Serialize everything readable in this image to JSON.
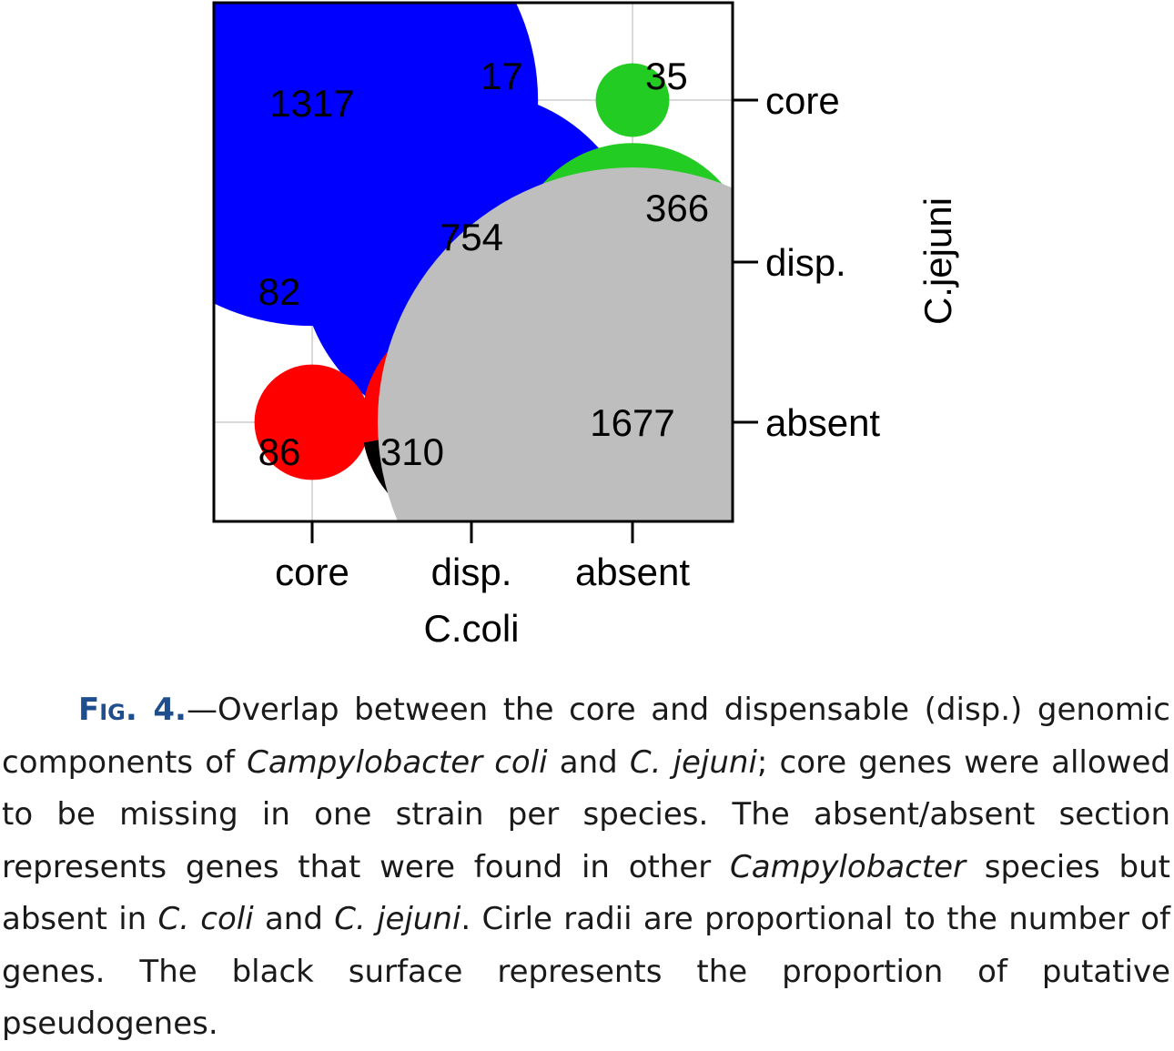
{
  "chart_data": {
    "type": "bubble-pie-matrix",
    "title": "",
    "xlabel": "C.coli",
    "ylabel": "C.jejuni",
    "x_categories": [
      "core",
      "disp.",
      "absent"
    ],
    "y_categories": [
      "core",
      "disp.",
      "absent"
    ],
    "grid": true,
    "max_value": 1677,
    "points": [
      {
        "x": "core",
        "y": "core",
        "value": 1317,
        "label": "1317",
        "color": "#0000ff",
        "pseudo_fraction": 0
      },
      {
        "x": "disp.",
        "y": "core",
        "value": 17,
        "label": "17",
        "color": "#0000ff",
        "pseudo_fraction": 0
      },
      {
        "x": "absent",
        "y": "core",
        "value": 35,
        "label": "35",
        "color": "#22cc22",
        "pseudo_fraction": 0
      },
      {
        "x": "core",
        "y": "disp.",
        "value": 82,
        "label": "82",
        "color": "#0000ff",
        "pseudo_fraction": 0
      },
      {
        "x": "disp.",
        "y": "disp.",
        "value": 754,
        "label": "754",
        "color": "#0000ff",
        "pseudo_fraction": 0.14
      },
      {
        "x": "absent",
        "y": "disp.",
        "value": 366,
        "label": "366",
        "color": "#22cc22",
        "pseudo_fraction": 0.5
      },
      {
        "x": "core",
        "y": "absent",
        "value": 86,
        "label": "86",
        "color": "#ff0000",
        "pseudo_fraction": 0
      },
      {
        "x": "disp.",
        "y": "absent",
        "value": 310,
        "label": "310",
        "color": "#ff0000",
        "pseudo_fraction": 0.47
      },
      {
        "x": "absent",
        "y": "absent",
        "value": 1677,
        "label": "1677",
        "color": "#bebebe",
        "pseudo_fraction": 0
      }
    ],
    "pseudo_color": "#000000"
  },
  "caption": {
    "fig_label": "Fig. 4.",
    "dash": "—",
    "parts": [
      {
        "text": "Overlap between the core and dispensable (disp.) genomic components of ",
        "italic": false
      },
      {
        "text": "Campylobacter coli",
        "italic": true
      },
      {
        "text": " and ",
        "italic": false
      },
      {
        "text": "C. jejuni",
        "italic": true
      },
      {
        "text": "; core genes were allowed to be missing in one strain per species. The absent/absent section represents genes that were found in other ",
        "italic": false
      },
      {
        "text": "Campylobacter",
        "italic": true
      },
      {
        "text": " species but absent in ",
        "italic": false
      },
      {
        "text": "C. coli",
        "italic": true
      },
      {
        "text": " and ",
        "italic": false
      },
      {
        "text": "C. jejuni",
        "italic": true
      },
      {
        "text": ". Cirle radii are proportional to the number of genes. The black surface represents the proportion of putative pseudogenes.",
        "italic": false
      }
    ]
  }
}
